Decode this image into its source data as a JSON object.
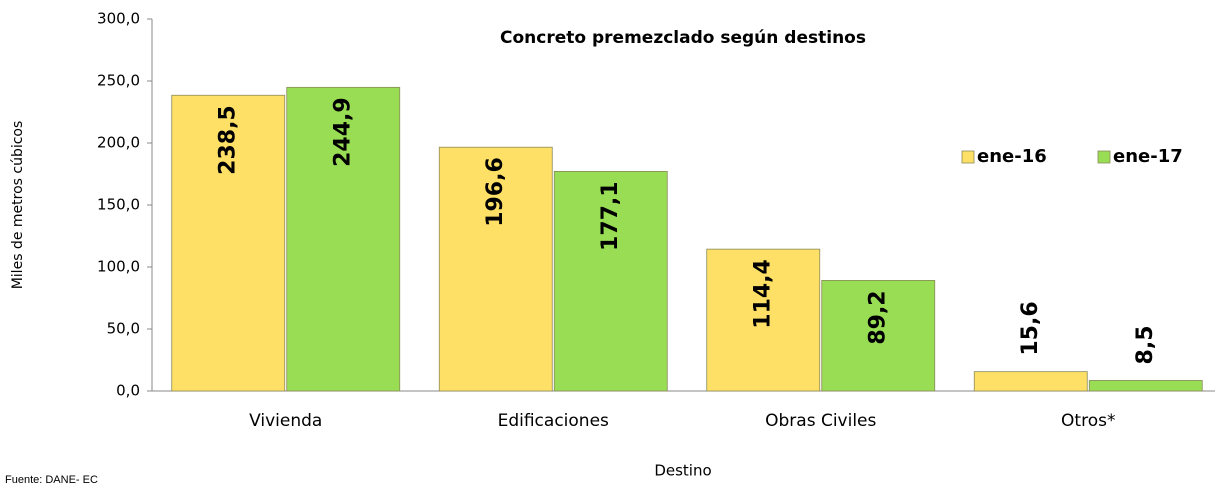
{
  "chart_data": {
    "type": "bar",
    "title": "Concreto premezclado según destinos",
    "x_label": "Destino",
    "y_label": "Miles de metros cúbicos",
    "source": "Fuente: DANE- EC",
    "categories": [
      "Vivienda",
      "Edificaciones",
      "Obras Civiles",
      "Otros*"
    ],
    "series": [
      {
        "name": "ene-16",
        "color": "#ffe066",
        "values": [
          238.5,
          196.6,
          114.4,
          15.6
        ],
        "value_labels": [
          "238,5",
          "196,6",
          "114,4",
          "15,6"
        ]
      },
      {
        "name": "ene-17",
        "color": "#99dd55",
        "values": [
          244.9,
          177.1,
          89.2,
          8.5
        ],
        "value_labels": [
          "244,9",
          "177,1",
          "89,2",
          "8,5"
        ]
      }
    ],
    "ylim": [
      0,
      300
    ],
    "yticks": [
      {
        "value": 0,
        "label": "0,0"
      },
      {
        "value": 50,
        "label": "50,0"
      },
      {
        "value": 100,
        "label": "100,0"
      },
      {
        "value": 150,
        "label": "150,0"
      },
      {
        "value": 200,
        "label": "200,0"
      },
      {
        "value": 250,
        "label": "250,0"
      },
      {
        "value": 300,
        "label": "300,0"
      }
    ],
    "legend": "right"
  }
}
